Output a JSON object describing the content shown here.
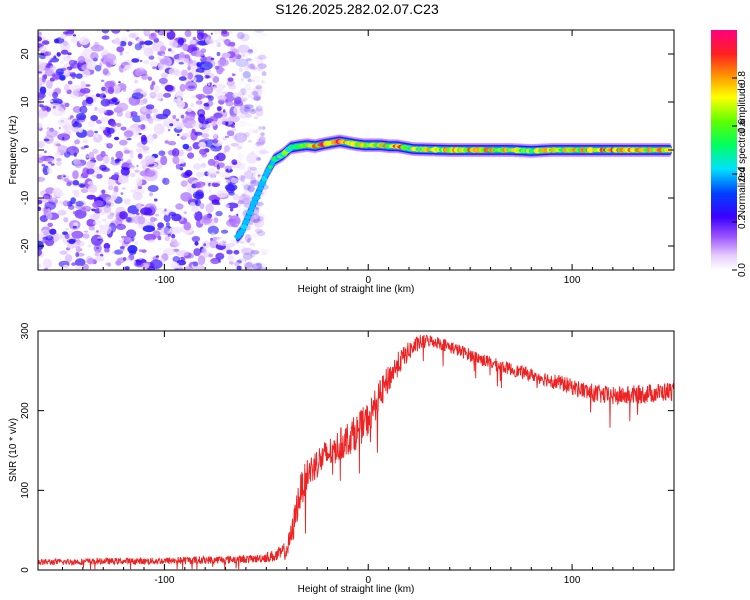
{
  "figure": {
    "title": "S126.2025.282.02.07.C23"
  },
  "chart_data": [
    {
      "type": "heatmap",
      "title": "S126.2025.282.02.07.C23",
      "xlabel": "Height of straight line (km)",
      "ylabel": "Frequency (Hz)",
      "xlim": [
        -162,
        150
      ],
      "ylim": [
        -25,
        25
      ],
      "xticks": [
        -100,
        0,
        100
      ],
      "xtick_labels": [
        "-100",
        "0",
        "100"
      ],
      "yticks": [
        -20,
        -10,
        0,
        10,
        20
      ],
      "ytick_labels": [
        "-20",
        "-10",
        "0",
        "10",
        "20"
      ],
      "noise_region_x": [
        -162,
        -55
      ],
      "signal_track": {
        "x": [
          -64,
          -62,
          -58,
          -54,
          -50,
          -46,
          -42,
          -38,
          -34,
          -30,
          -26,
          -22,
          -18,
          -14,
          -10,
          -6,
          -2,
          2,
          6,
          10,
          14,
          18,
          22,
          30,
          40,
          50,
          60,
          70,
          80,
          90,
          100,
          110,
          120,
          130,
          140,
          148
        ],
        "y": [
          -18,
          -17,
          -13,
          -9,
          -5,
          -2,
          -1,
          0.5,
          0.8,
          1.0,
          0.8,
          1.2,
          1.5,
          1.8,
          1.5,
          1.2,
          1.0,
          1.0,
          1.0,
          0.8,
          0.8,
          0.5,
          0.2,
          0.1,
          0,
          0,
          0,
          0,
          -0.2,
          0,
          0,
          0,
          0,
          0,
          0,
          0
        ],
        "amplitude": [
          0.25,
          0.25,
          0.28,
          0.3,
          0.35,
          0.45,
          0.55,
          0.6,
          0.65,
          0.7,
          0.75,
          0.8,
          0.8,
          0.85,
          0.8,
          0.75,
          0.7,
          0.7,
          0.7,
          0.7,
          0.8,
          0.7,
          0.6,
          0.65,
          0.7,
          0.7,
          0.7,
          0.65,
          0.6,
          0.7,
          0.65,
          0.7,
          0.75,
          0.7,
          0.7,
          0.65
        ]
      },
      "colorbar": {
        "label": "Normalized spectral amplitude",
        "range": [
          0,
          1
        ],
        "ticks": [
          0.0,
          0.2,
          0.4,
          0.6,
          0.8
        ],
        "tick_labels": [
          "0.0",
          "0.2",
          "0.4",
          "0.6",
          "0.8"
        ],
        "colormap": "rainbow (white-purple-blue-cyan-green-yellow-orange-red-magenta)"
      }
    },
    {
      "type": "line",
      "xlabel": "Height of straight line (km)",
      "ylabel": "SNR (10 * v/v)",
      "xlim": [
        -162,
        150
      ],
      "ylim": [
        0,
        300
      ],
      "xticks": [
        -100,
        0,
        100
      ],
      "xtick_labels": [
        "-100",
        "0",
        "100"
      ],
      "yticks": [
        0,
        100,
        200,
        300
      ],
      "ytick_labels": [
        "0",
        "100",
        "200",
        "300"
      ],
      "series": [
        {
          "name": "SNR",
          "color": "#ee2222",
          "x": [
            -162,
            -150,
            -130,
            -110,
            -90,
            -70,
            -55,
            -45,
            -40,
            -37,
            -35,
            -33,
            -30,
            -25,
            -20,
            -15,
            -10,
            -5,
            0,
            5,
            10,
            15,
            20,
            25,
            30,
            35,
            40,
            45,
            50,
            60,
            70,
            80,
            90,
            100,
            110,
            120,
            130,
            140,
            150
          ],
          "y": [
            10,
            10,
            11,
            11,
            12,
            13,
            14,
            18,
            25,
            50,
            80,
            100,
            120,
            135,
            145,
            155,
            165,
            175,
            190,
            215,
            240,
            260,
            275,
            285,
            288,
            285,
            280,
            275,
            270,
            260,
            252,
            245,
            238,
            230,
            222,
            218,
            220,
            222,
            225
          ],
          "noise_amplitude": [
            4,
            4,
            4,
            4,
            5,
            5,
            5,
            8,
            12,
            18,
            22,
            22,
            20,
            20,
            20,
            20,
            22,
            22,
            22,
            20,
            18,
            15,
            12,
            10,
            8,
            8,
            8,
            8,
            8,
            8,
            8,
            8,
            10,
            10,
            12,
            12,
            12,
            12,
            12
          ]
        }
      ]
    }
  ],
  "colors": {
    "axis": "#000000",
    "background": "#ffffff",
    "snr_line": "#ee2222"
  }
}
